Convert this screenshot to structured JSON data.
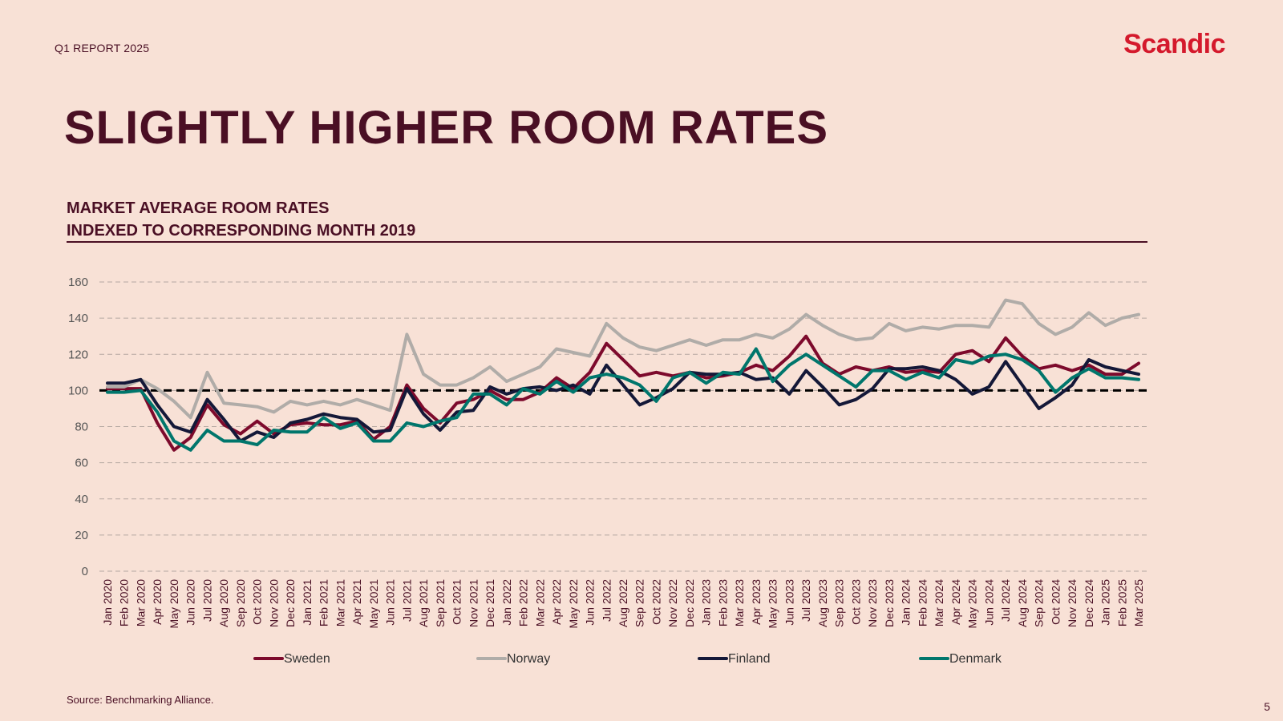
{
  "header": {
    "report_label": "Q1 REPORT 2025",
    "logo_text": "Scandic"
  },
  "title": "SLIGHTLY HIGHER ROOM RATES",
  "subtitle": {
    "line1": "MARKET AVERAGE ROOM RATES",
    "line2": "INDEXED TO CORRESPONDING MONTH 2019"
  },
  "footer": {
    "source": "Source: Benchmarking Alliance.",
    "page_number": "5"
  },
  "chart_data": {
    "type": "line",
    "title": "MARKET AVERAGE ROOM RATES INDEXED TO CORRESPONDING MONTH 2019",
    "xlabel": "",
    "ylabel": "",
    "ylim": [
      0,
      160
    ],
    "yticks": [
      0,
      20,
      40,
      60,
      80,
      100,
      120,
      140,
      160
    ],
    "grid": true,
    "reference_line": 100,
    "legend_position": "bottom",
    "categories": [
      "Jan 2020",
      "Feb 2020",
      "Mar 2020",
      "Apr 2020",
      "May 2020",
      "Jun 2020",
      "Jul 2020",
      "Aug 2020",
      "Sep 2020",
      "Oct 2020",
      "Nov 2020",
      "Dec 2020",
      "Jan 2021",
      "Feb 2021",
      "Mar 2021",
      "Apr 2021",
      "May 2021",
      "Jun 2021",
      "Jul 2021",
      "Aug 2021",
      "Sep 2021",
      "Oct 2021",
      "Nov 2021",
      "Dec 2021",
      "Jan 2022",
      "Feb 2022",
      "Mar 2022",
      "Apr 2022",
      "May 2022",
      "Jun 2022",
      "Jul 2022",
      "Aug 2022",
      "Sep 2022",
      "Oct 2022",
      "Nov 2022",
      "Dec 2022",
      "Jan 2023",
      "Feb 2023",
      "Mar 2023",
      "Apr 2023",
      "May 2023",
      "Jun 2023",
      "Jul 2023",
      "Aug 2023",
      "Sep 2023",
      "Oct 2023",
      "Nov 2023",
      "Dec 2023",
      "Jan 2024",
      "Feb 2024",
      "Mar 2024",
      "Apr 2024",
      "May 2024",
      "Jun 2024",
      "Jul 2024",
      "Aug 2024",
      "Sep 2024",
      "Oct 2024",
      "Nov 2024",
      "Dec 2024",
      "Jan 2025",
      "Feb 2025",
      "Mar 2025"
    ],
    "series": [
      {
        "name": "Sweden",
        "color": "#7d0a2c",
        "values": [
          101,
          101,
          101,
          82,
          67,
          74,
          92,
          81,
          76,
          83,
          76,
          81,
          82,
          81,
          81,
          83,
          73,
          80,
          103,
          90,
          82,
          93,
          95,
          100,
          95,
          95,
          99,
          107,
          101,
          110,
          126,
          117,
          108,
          110,
          108,
          110,
          107,
          108,
          110,
          114,
          111,
          119,
          130,
          115,
          109,
          113,
          111,
          113,
          110,
          111,
          110,
          120,
          122,
          116,
          129,
          119,
          112,
          114,
          111,
          114,
          109,
          109,
          115
        ]
      },
      {
        "name": "Norway",
        "color": "#b0aca8",
        "values": [
          102,
          102,
          106,
          101,
          94,
          85,
          110,
          93,
          92,
          91,
          88,
          94,
          92,
          94,
          92,
          95,
          92,
          89,
          131,
          109,
          103,
          103,
          107,
          113,
          105,
          109,
          113,
          123,
          121,
          119,
          137,
          129,
          124,
          122,
          125,
          128,
          125,
          128,
          128,
          131,
          129,
          134,
          142,
          136,
          131,
          128,
          129,
          137,
          133,
          135,
          134,
          136,
          136,
          135,
          150,
          148,
          137,
          131,
          135,
          143,
          136,
          140,
          142
        ]
      },
      {
        "name": "Finland",
        "color": "#141838",
        "values": [
          104,
          104,
          106,
          92,
          80,
          77,
          95,
          84,
          72,
          77,
          74,
          82,
          84,
          87,
          85,
          84,
          77,
          78,
          101,
          87,
          78,
          88,
          89,
          102,
          98,
          101,
          102,
          100,
          103,
          98,
          114,
          103,
          92,
          96,
          101,
          110,
          109,
          109,
          110,
          106,
          107,
          98,
          111,
          102,
          92,
          95,
          101,
          112,
          112,
          113,
          111,
          106,
          98,
          102,
          116,
          103,
          90,
          96,
          103,
          117,
          113,
          111,
          109
        ]
      },
      {
        "name": "Denmark",
        "color": "#00766c",
        "values": [
          99,
          99,
          100,
          88,
          72,
          67,
          78,
          72,
          72,
          70,
          78,
          77,
          77,
          85,
          79,
          82,
          72,
          72,
          82,
          80,
          83,
          85,
          98,
          98,
          92,
          101,
          98,
          105,
          99,
          107,
          109,
          107,
          103,
          94,
          107,
          110,
          104,
          110,
          109,
          123,
          105,
          114,
          120,
          114,
          108,
          102,
          111,
          111,
          106,
          110,
          107,
          117,
          115,
          119,
          120,
          117,
          111,
          99,
          107,
          112,
          107,
          107,
          106
        ]
      }
    ]
  }
}
